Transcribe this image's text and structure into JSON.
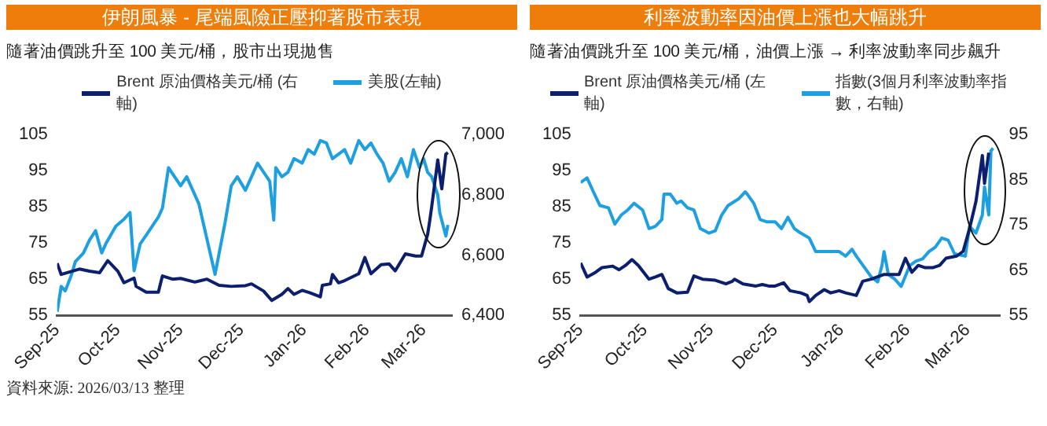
{
  "chart_data": [
    {
      "type": "line",
      "title": "伊朗風暴 - 尾端風險正壓抑著股市表現",
      "subtitle": "隨著油價跳升至 100 美元/桶，股市出現拋售",
      "legend": "top",
      "marker": "none",
      "xlim": [
        "2025-09-01",
        "2026-03-15"
      ],
      "xticks": [
        {
          "value": "2025-09-01",
          "label": "Sep-25"
        },
        {
          "value": "2025-10-01",
          "label": "Oct-25"
        },
        {
          "value": "2025-11-01",
          "label": "Nov-25"
        },
        {
          "value": "2025-12-01",
          "label": "Dec-25"
        },
        {
          "value": "2026-01-01",
          "label": "Jan-26"
        },
        {
          "value": "2026-02-01",
          "label": "Feb-26"
        },
        {
          "value": "2026-03-01",
          "label": "Mar-26"
        }
      ],
      "ylim": [
        55,
        105
      ],
      "yticks": [
        55,
        65,
        75,
        85,
        95,
        105
      ],
      "y2lim": [
        6400,
        7000
      ],
      "y2ticks": [
        {
          "value": 6400,
          "label": "6,400"
        },
        {
          "value": 6600,
          "label": "6,600"
        },
        {
          "value": 6800,
          "label": "6,800"
        },
        {
          "value": 7000,
          "label": "7,000"
        }
      ],
      "annotations": [
        "資料來源: 2026/03/13 整理"
      ],
      "series": [
        {
          "name": "Brent 原油價格美元/桶 (右軸)",
          "color": "#0c1f6e",
          "x": [
            "2025-09-01",
            "2025-09-03",
            "2025-09-06",
            "2025-09-12",
            "2025-09-17",
            "2025-09-22",
            "2025-09-26",
            "2025-10-01",
            "2025-10-04",
            "2025-10-09",
            "2025-10-10",
            "2025-10-15",
            "2025-10-21",
            "2025-10-23",
            "2025-10-28",
            "2025-11-01",
            "2025-11-08",
            "2025-11-14",
            "2025-11-20",
            "2025-11-26",
            "2025-12-03",
            "2025-12-06",
            "2025-12-12",
            "2025-12-16",
            "2025-12-21",
            "2025-12-24",
            "2025-12-27",
            "2025-12-31",
            "2026-01-04",
            "2026-01-09",
            "2026-01-10",
            "2026-01-14",
            "2026-01-15",
            "2026-01-18",
            "2026-01-21",
            "2026-01-28",
            "2026-01-31",
            "2026-02-03",
            "2026-02-08",
            "2026-02-12",
            "2026-02-15",
            "2026-02-20",
            "2026-02-25",
            "2026-02-28",
            "2026-03-03",
            "2026-03-04",
            "2026-03-05",
            "2026-03-08",
            "2026-03-10",
            "2026-03-12",
            "2026-03-13"
          ],
          "values": [
            69.4,
            66.3,
            66.8,
            67.8,
            67.2,
            66.8,
            70.1,
            67.2,
            64,
            65.3,
            63,
            61.4,
            61.4,
            65.9,
            65,
            65.2,
            64.2,
            65,
            63.3,
            63,
            63.2,
            63.7,
            61.7,
            59.1,
            60.8,
            62.4,
            60.8,
            61.9,
            61.2,
            60.1,
            63.3,
            63.7,
            66.3,
            64,
            64.6,
            66.5,
            71,
            66.5,
            69,
            69.2,
            67.3,
            72,
            71.4,
            71.4,
            77.4,
            81,
            85,
            98,
            90,
            99.6,
            100
          ]
        },
        {
          "name": "美股(左軸)",
          "color": "#1ea0e0",
          "axis": "y2",
          "x": [
            "2025-09-01",
            "2025-09-03",
            "2025-09-05",
            "2025-09-08",
            "2025-09-10",
            "2025-09-14",
            "2025-09-17",
            "2025-09-20",
            "2025-09-23",
            "2025-09-25",
            "2025-09-30",
            "2025-10-04",
            "2025-10-07",
            "2025-10-09",
            "2025-10-12",
            "2025-10-15",
            "2025-10-18",
            "2025-10-21",
            "2025-10-23",
            "2025-10-26",
            "2025-10-29",
            "2025-11-01",
            "2025-11-04",
            "2025-11-07",
            "2025-11-10",
            "2025-11-18",
            "2025-11-23",
            "2025-11-26",
            "2025-11-29",
            "2025-12-03",
            "2025-12-06",
            "2025-12-09",
            "2025-12-12",
            "2025-12-15",
            "2025-12-17",
            "2025-12-18",
            "2025-12-21",
            "2025-12-24",
            "2025-12-27",
            "2025-12-31",
            "2026-01-03",
            "2026-01-06",
            "2026-01-09",
            "2026-01-12",
            "2026-01-15",
            "2026-01-18",
            "2026-01-21",
            "2026-01-24",
            "2026-01-28",
            "2026-01-31",
            "2026-02-03",
            "2026-02-06",
            "2026-02-09",
            "2026-02-12",
            "2026-02-15",
            "2026-02-18",
            "2026-02-21",
            "2026-02-24",
            "2026-02-27",
            "2026-03-01",
            "2026-03-03",
            "2026-03-05",
            "2026-03-08",
            "2026-03-09",
            "2026-03-12",
            "2026-03-13"
          ],
          "values": [
            6412,
            6496,
            6481,
            6533,
            6578,
            6607,
            6650,
            6681,
            6607,
            6637,
            6696,
            6719,
            6741,
            6548,
            6637,
            6666,
            6696,
            6726,
            6756,
            6890,
            6860,
            6830,
            6860,
            6815,
            6770,
            6536,
            6710,
            6830,
            6860,
            6815,
            6860,
            6905,
            6875,
            6845,
            6716,
            6890,
            6860,
            6875,
            6920,
            6905,
            6950,
            6935,
            6980,
            6972,
            6920,
            6935,
            6950,
            6905,
            6980,
            6950,
            6972,
            6935,
            6905,
            6845,
            6875,
            6920,
            6860,
            6950,
            6890,
            6920,
            6875,
            6860,
            6800,
            6740,
            6663,
            6700
          ]
        }
      ]
    },
    {
      "type": "line",
      "title": "利率波動率因油價上漲也大幅跳升",
      "subtitle": "隨著油價跳升至 100 美元/桶，油價上漲 → 利率波動率同步飆升",
      "legend": "top",
      "marker": "none",
      "xlim": [
        "2025-09-01",
        "2026-03-16"
      ],
      "xticks": [
        {
          "value": "2025-09-01",
          "label": "Sep-25"
        },
        {
          "value": "2025-10-01",
          "label": "Oct-25"
        },
        {
          "value": "2025-11-01",
          "label": "Nov-25"
        },
        {
          "value": "2025-12-01",
          "label": "Dec-25"
        },
        {
          "value": "2026-01-01",
          "label": "Jan-26"
        },
        {
          "value": "2026-02-01",
          "label": "Feb-26"
        },
        {
          "value": "2026-03-01",
          "label": "Mar-26"
        }
      ],
      "ylim": [
        55,
        105
      ],
      "yticks": [
        55,
        65,
        75,
        85,
        95,
        105
      ],
      "y2lim": [
        55,
        95
      ],
      "y2ticks": [
        55,
        65,
        75,
        85,
        95
      ],
      "series": [
        {
          "name": "Brent 原油價格美元/桶 (左軸)",
          "color": "#0c1f6e",
          "x": [
            "2025-09-01",
            "2025-09-04",
            "2025-09-08",
            "2025-09-11",
            "2025-09-16",
            "2025-09-19",
            "2025-09-22",
            "2025-09-25",
            "2025-09-28",
            "2025-10-03",
            "2025-10-06",
            "2025-10-09",
            "2025-10-12",
            "2025-10-16",
            "2025-10-21",
            "2025-10-24",
            "2025-10-28",
            "2025-11-03",
            "2025-11-08",
            "2025-11-11",
            "2025-11-12",
            "2025-11-16",
            "2025-11-22",
            "2025-11-25",
            "2025-11-28",
            "2025-12-01",
            "2025-12-05",
            "2025-12-08",
            "2025-12-13",
            "2025-12-16",
            "2025-12-17",
            "2025-12-20",
            "2025-12-24",
            "2025-12-27",
            "2025-12-31",
            "2026-01-03",
            "2026-01-08",
            "2026-01-11",
            "2026-01-15",
            "2026-01-21",
            "2026-01-28",
            "2026-01-31",
            "2026-02-03",
            "2026-02-06",
            "2026-02-09",
            "2026-02-13",
            "2026-02-16",
            "2026-02-19",
            "2026-02-24",
            "2026-02-27",
            "2026-03-02",
            "2026-03-05",
            "2026-03-08",
            "2026-03-09",
            "2026-03-11"
          ],
          "values": [
            69.5,
            65.6,
            66.9,
            68.2,
            68.6,
            67.6,
            68.8,
            70.4,
            68.8,
            65,
            65.6,
            66.3,
            62.4,
            61.2,
            61.4,
            65.9,
            65,
            64.7,
            63.7,
            64.4,
            65,
            63.7,
            63.1,
            63.5,
            63.1,
            63.1,
            64,
            61.8,
            61.2,
            60.5,
            58.8,
            60.5,
            62.1,
            61.2,
            61.8,
            61.2,
            60.5,
            64.4,
            65,
            66.3,
            66.3,
            70.8,
            66.9,
            68.8,
            68.2,
            68.2,
            68.8,
            70.8,
            71.4,
            72.7,
            79,
            86.5,
            99.2,
            91.5,
            100
          ]
        },
        {
          "name": "指數(3個月利率波動率指數，右軸)",
          "color": "#1ea0e0",
          "axis": "y2",
          "x": [
            "2025-09-01",
            "2025-09-04",
            "2025-09-07",
            "2025-09-10",
            "2025-09-14",
            "2025-09-17",
            "2025-09-20",
            "2025-09-23",
            "2025-09-26",
            "2025-09-30",
            "2025-10-03",
            "2025-10-06",
            "2025-10-09",
            "2025-10-10",
            "2025-10-13",
            "2025-10-16",
            "2025-10-18",
            "2025-10-21",
            "2025-10-24",
            "2025-10-27",
            "2025-10-31",
            "2025-11-03",
            "2025-11-06",
            "2025-11-09",
            "2025-11-14",
            "2025-11-17",
            "2025-11-18",
            "2025-11-21",
            "2025-11-24",
            "2025-11-27",
            "2025-12-01",
            "2025-12-04",
            "2025-12-07",
            "2025-12-10",
            "2025-12-13",
            "2025-12-17",
            "2025-12-20",
            "2025-12-25",
            "2025-12-31",
            "2026-01-03",
            "2026-01-06",
            "2026-01-08",
            "2026-01-12",
            "2026-01-15",
            "2026-01-18",
            "2026-01-20",
            "2026-01-21",
            "2026-01-23",
            "2026-01-26",
            "2026-01-29",
            "2026-02-02",
            "2026-02-05",
            "2026-02-08",
            "2026-02-11",
            "2026-02-14",
            "2026-02-17",
            "2026-02-20",
            "2026-02-23",
            "2026-02-28",
            "2026-03-02",
            "2026-03-05",
            "2026-03-08",
            "2026-03-09",
            "2026-03-11",
            "2026-03-12",
            "2026-03-13"
          ],
          "values": [
            84.4,
            85.4,
            82.3,
            79.3,
            78.8,
            75.2,
            77.2,
            78.3,
            79.8,
            78.3,
            74.2,
            74.7,
            76.2,
            81.8,
            81.8,
            79.8,
            80.3,
            78.8,
            78.3,
            74.2,
            73.2,
            73.7,
            77.2,
            79.3,
            80.8,
            82.3,
            81.8,
            79.8,
            76.2,
            75.7,
            75.7,
            74.2,
            76.7,
            74.2,
            73.2,
            72.1,
            69.1,
            69.1,
            69.1,
            68.1,
            69.6,
            68.1,
            65.5,
            63.5,
            62.4,
            66,
            69.1,
            64,
            63,
            61.4,
            66,
            67,
            67.5,
            69.1,
            70.1,
            72.1,
            71.6,
            68.6,
            68.1,
            74.7,
            73.2,
            77.2,
            83.4,
            77.2,
            91.4,
            92
          ]
        }
      ]
    }
  ]
}
